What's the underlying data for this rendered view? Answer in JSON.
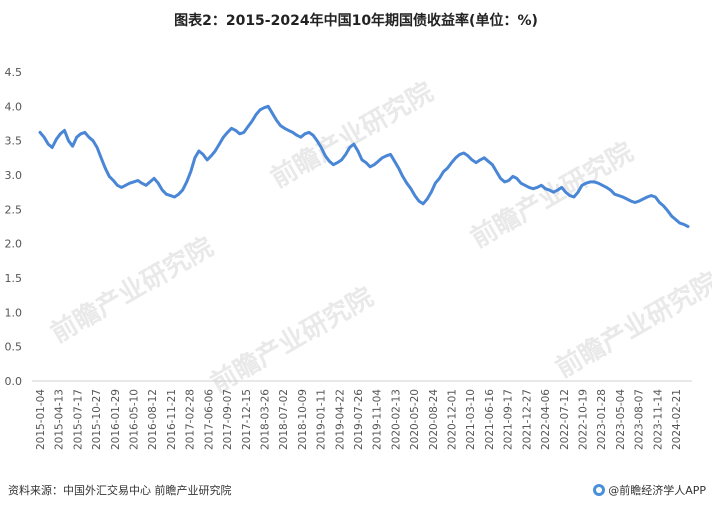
{
  "header": {
    "title": "图表2：2015-2024年中国10年期国债收益率(单位：%)"
  },
  "footer": {
    "source": "资料来源：中国外汇交易中心 前瞻产业研究院",
    "brand": "@前瞻经济学人APP"
  },
  "watermarks": [
    "前瞻产业研究院",
    "前瞻产业研究院",
    "前瞻产业研究院",
    "前瞻产业研究院",
    "前瞻产业研究院"
  ],
  "colors": {
    "line": "#4a86d6",
    "axis": "#d0d0d0",
    "tick_text": "#555555"
  },
  "chart_data": {
    "type": "line",
    "title": "图表2：2015-2024年中国10年期国债收益率(单位：%)",
    "xlabel": "",
    "ylabel": "",
    "ylim": [
      0,
      4.5
    ],
    "yticks": [
      "0.0",
      "0.5",
      "1.0",
      "1.5",
      "2.0",
      "2.5",
      "3.0",
      "3.5",
      "4.0",
      "4.5"
    ],
    "grid": false,
    "legend": "none",
    "xticks": [
      "2015-01-04",
      "2015-04-13",
      "2015-07-17",
      "2015-10-27",
      "2016-01-29",
      "2016-05-10",
      "2016-08-12",
      "2016-11-21",
      "2017-02-28",
      "2017-06-06",
      "2017-09-07",
      "2017-12-15",
      "2018-03-26",
      "2018-07-02",
      "2018-10-09",
      "2019-01-11",
      "2019-04-22",
      "2019-07-26",
      "2019-11-04",
      "2020-02-13",
      "2020-05-20",
      "2020-08-24",
      "2020-12-01",
      "2021-03-10",
      "2021-06-16",
      "2021-09-17",
      "2021-12-27",
      "2022-04-06",
      "2022-07-12",
      "2022-10-19",
      "2023-01-28",
      "2023-05-04",
      "2023-08-07",
      "2023-11-14",
      "2024-02-21"
    ],
    "series": [
      {
        "values": [
          3.62,
          3.55,
          3.45,
          3.4,
          3.52,
          3.6,
          3.65,
          3.5,
          3.42,
          3.55,
          3.6,
          3.62,
          3.55,
          3.5,
          3.4,
          3.25,
          3.1,
          2.98,
          2.92,
          2.85,
          2.82,
          2.85,
          2.88,
          2.9,
          2.92,
          2.88,
          2.85,
          2.9,
          2.95,
          2.88,
          2.78,
          2.72,
          2.7,
          2.68,
          2.72,
          2.78,
          2.9,
          3.05,
          3.25,
          3.35,
          3.3,
          3.22,
          3.28,
          3.35,
          3.45,
          3.55,
          3.62,
          3.68,
          3.65,
          3.6,
          3.62,
          3.7,
          3.78,
          3.88,
          3.95,
          3.98,
          4.0,
          3.9,
          3.8,
          3.72,
          3.68,
          3.65,
          3.62,
          3.58,
          3.55,
          3.6,
          3.62,
          3.58,
          3.5,
          3.4,
          3.28,
          3.2,
          3.15,
          3.18,
          3.22,
          3.3,
          3.4,
          3.45,
          3.35,
          3.22,
          3.18,
          3.12,
          3.15,
          3.2,
          3.25,
          3.28,
          3.3,
          3.2,
          3.1,
          2.98,
          2.88,
          2.8,
          2.7,
          2.62,
          2.58,
          2.65,
          2.75,
          2.88,
          2.95,
          3.05,
          3.1,
          3.18,
          3.25,
          3.3,
          3.32,
          3.28,
          3.22,
          3.18,
          3.22,
          3.25,
          3.2,
          3.15,
          3.05,
          2.95,
          2.9,
          2.92,
          2.98,
          2.95,
          2.88,
          2.85,
          2.82,
          2.8,
          2.82,
          2.85,
          2.8,
          2.78,
          2.75,
          2.78,
          2.82,
          2.75,
          2.7,
          2.68,
          2.75,
          2.85,
          2.88,
          2.9,
          2.9,
          2.88,
          2.85,
          2.82,
          2.78,
          2.72,
          2.7,
          2.68,
          2.65,
          2.62,
          2.6,
          2.62,
          2.65,
          2.68,
          2.7,
          2.68,
          2.6,
          2.55,
          2.48,
          2.4,
          2.35,
          2.3,
          2.28,
          2.25
        ]
      }
    ]
  }
}
